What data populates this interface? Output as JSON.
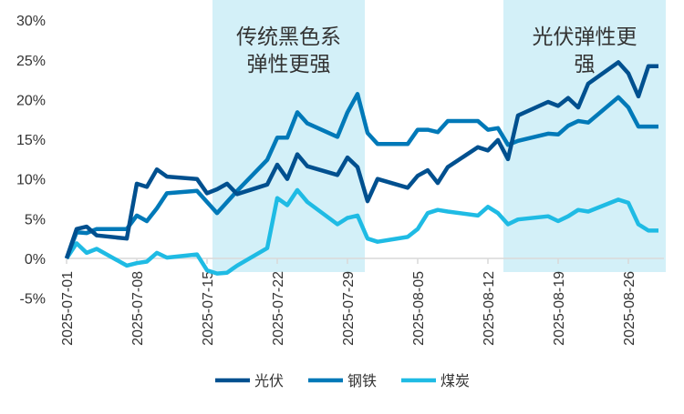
{
  "chart_data": {
    "type": "line",
    "title": "",
    "xlabel": "",
    "ylabel": "",
    "ylim": [
      -5,
      30
    ],
    "y_ticks": [
      "-5%",
      "0%",
      "5%",
      "10%",
      "15%",
      "20%",
      "25%",
      "30%"
    ],
    "y_tick_values": [
      -5,
      0,
      5,
      10,
      15,
      20,
      25,
      30
    ],
    "x_ticks": [
      "2025-07-01",
      "2025-07-08",
      "2025-07-15",
      "2025-07-22",
      "2025-07-29",
      "2025-08-05",
      "2025-08-12",
      "2025-08-19",
      "2025-08-26"
    ],
    "grid": false,
    "legend_position": "bottom",
    "x": [
      "2025-07-01",
      "2025-07-02",
      "2025-07-03",
      "2025-07-04",
      "2025-07-07",
      "2025-07-08",
      "2025-07-09",
      "2025-07-10",
      "2025-07-11",
      "2025-07-14",
      "2025-07-15",
      "2025-07-16",
      "2025-07-17",
      "2025-07-18",
      "2025-07-21",
      "2025-07-22",
      "2025-07-23",
      "2025-07-24",
      "2025-07-25",
      "2025-07-28",
      "2025-07-29",
      "2025-07-30",
      "2025-07-31",
      "2025-08-01",
      "2025-08-04",
      "2025-08-05",
      "2025-08-06",
      "2025-08-07",
      "2025-08-08",
      "2025-08-11",
      "2025-08-12",
      "2025-08-13",
      "2025-08-14",
      "2025-08-15",
      "2025-08-18",
      "2025-08-19",
      "2025-08-20",
      "2025-08-21",
      "2025-08-22",
      "2025-08-25",
      "2025-08-26",
      "2025-08-27",
      "2025-08-28",
      "2025-08-29"
    ],
    "series": [
      {
        "name": "光伏",
        "color": "#00508f",
        "values": [
          0,
          3.7,
          4.0,
          2.9,
          2.5,
          9.4,
          9.0,
          11.2,
          10.3,
          10.0,
          8.2,
          8.7,
          9.4,
          8.1,
          9.3,
          11.8,
          10.0,
          13.1,
          11.6,
          10.5,
          12.7,
          11.5,
          7.2,
          10.0,
          8.9,
          10.4,
          11.1,
          9.5,
          11.5,
          14.0,
          13.6,
          14.9,
          12.5,
          18.0,
          19.7,
          19.2,
          20.2,
          19.0,
          22.0,
          24.7,
          23.3,
          20.4,
          24.2,
          24.2
        ]
      },
      {
        "name": "钢铁",
        "color": "#0079b8",
        "values": [
          0,
          3.3,
          3.2,
          3.7,
          3.7,
          5.4,
          4.7,
          6.3,
          8.2,
          8.5,
          7.1,
          5.7,
          7.1,
          8.5,
          12.4,
          15.2,
          15.2,
          18.4,
          17.0,
          15.3,
          18.4,
          20.7,
          15.8,
          14.4,
          14.4,
          16.2,
          16.2,
          15.9,
          17.3,
          17.3,
          16.2,
          16.4,
          14.3,
          14.8,
          15.7,
          15.6,
          16.7,
          17.3,
          17.1,
          20.3,
          19.0,
          16.6,
          16.6,
          16.6
        ]
      },
      {
        "name": "煤炭",
        "color": "#1fbbe4",
        "values": [
          0,
          1.9,
          0.7,
          1.2,
          -0.9,
          -0.6,
          -0.4,
          0.7,
          0.1,
          0.5,
          -1.5,
          -1.9,
          -1.8,
          -0.9,
          1.3,
          7.6,
          6.7,
          8.6,
          7.1,
          4.3,
          5.1,
          5.4,
          2.5,
          2.1,
          2.7,
          3.7,
          5.7,
          6.1,
          5.9,
          5.4,
          6.5,
          5.7,
          4.3,
          4.9,
          5.3,
          4.7,
          5.3,
          6.1,
          5.9,
          7.4,
          7.0,
          4.3,
          3.5,
          3.5
        ]
      }
    ],
    "highlight_bands": [
      {
        "from": "2025-07-16",
        "to": "2025-07-30",
        "color": "#d3f0f8",
        "label_lines": [
          "传统黑色系",
          "弹性更强"
        ]
      },
      {
        "from": "2025-08-14",
        "to": "2025-08-29",
        "color": "#d3f0f8",
        "label_lines": [
          "光伏弹性更",
          "强"
        ]
      }
    ]
  }
}
